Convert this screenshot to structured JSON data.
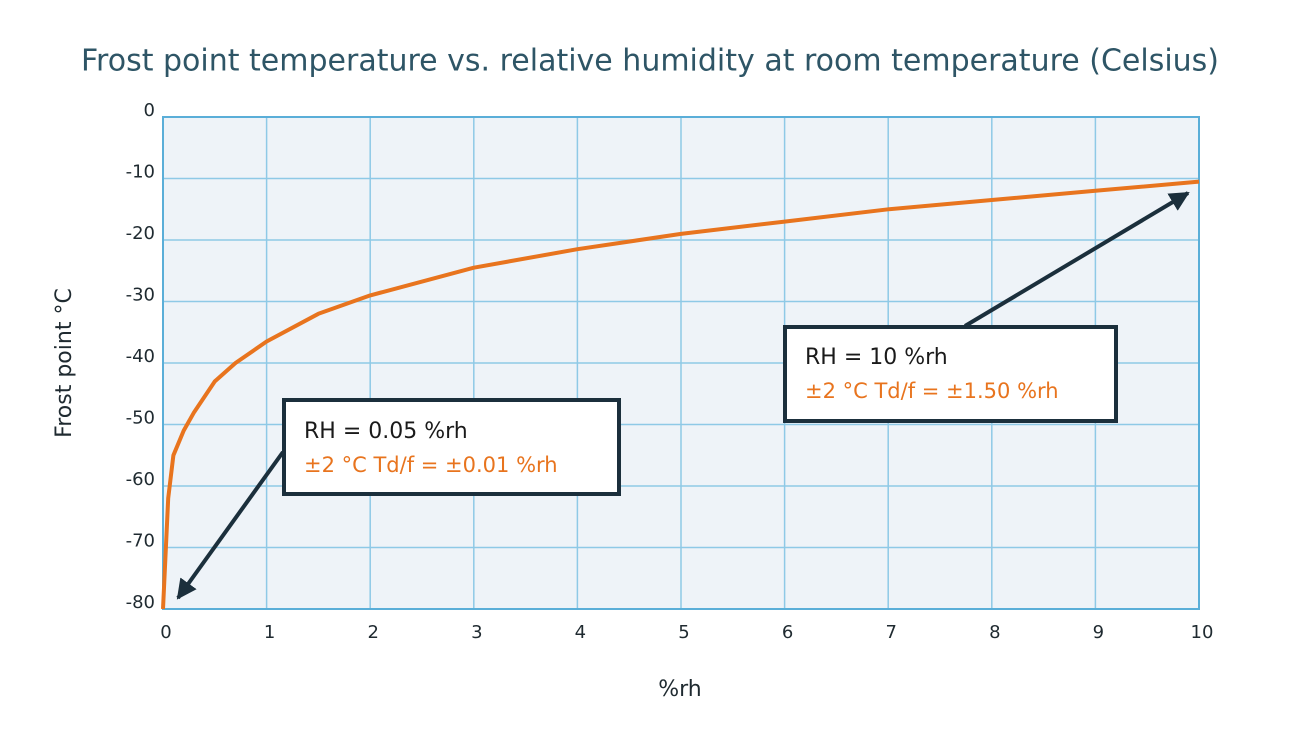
{
  "chart_data": {
    "type": "line",
    "title": "Frost point temperature vs. relative humidity at room temperature (Celsius)",
    "xlabel": "%rh",
    "ylabel": "Frost point °C",
    "x": [
      0,
      0.05,
      0.1,
      0.2,
      0.3,
      0.5,
      0.7,
      1,
      1.5,
      2,
      3,
      4,
      5,
      6,
      7,
      8,
      9,
      10
    ],
    "values": [
      -80,
      -62,
      -55,
      -51,
      -48,
      -43,
      -40,
      -36.5,
      -32,
      -29,
      -24.5,
      -21.5,
      -19,
      -17,
      -15,
      -13.5,
      -12,
      -10.5
    ],
    "color": "#e8741e",
    "xlim": [
      0,
      10
    ],
    "ylim": [
      -80,
      0
    ],
    "xticks": [
      0,
      1,
      2,
      3,
      4,
      5,
      6,
      7,
      8,
      9,
      10
    ],
    "yticks": [
      0,
      -10,
      -20,
      -30,
      -40,
      -50,
      -60,
      -70,
      -80
    ],
    "grid": true,
    "annotations": [
      {
        "text": "RH = 0.05 %rh",
        "detail": "±2 °C Td/f = ±0.01 %rh"
      },
      {
        "text": "RH = 10 %rh",
        "detail": "±2 °C Td/f = ±1.50 %rh"
      }
    ]
  }
}
